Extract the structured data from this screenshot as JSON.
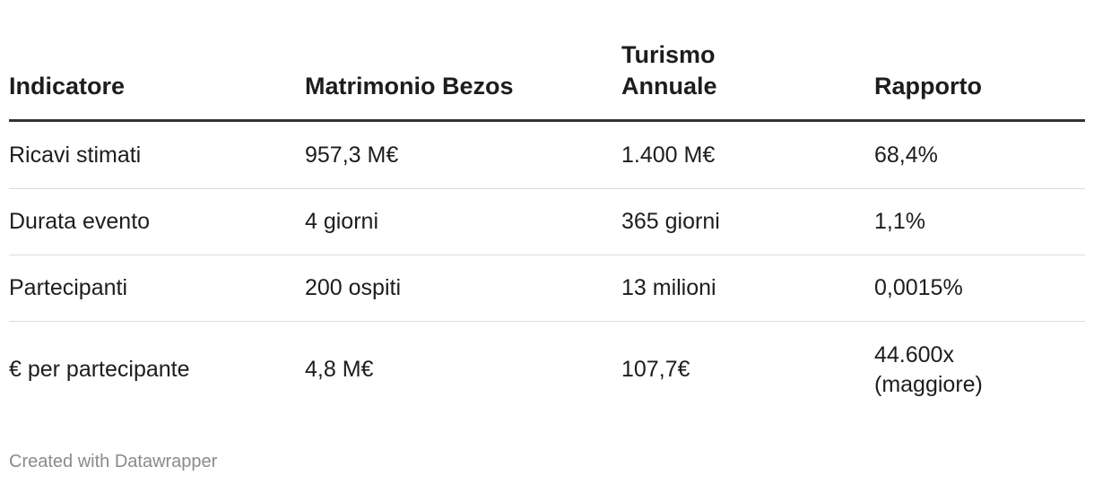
{
  "table": {
    "header": [
      "Indicatore",
      "Matrimonio Bezos",
      "Turismo Annuale",
      "Rapporto"
    ],
    "rows": [
      [
        "Ricavi stimati",
        "957,3 M€",
        "1.400 M€",
        "68,4%"
      ],
      [
        "Durata evento",
        "4 giorni",
        "365 giorni",
        "1,1%"
      ],
      [
        "Partecipanti",
        "200 ospiti",
        "13 milioni",
        "0,0015%"
      ],
      [
        "€ per partecipante",
        "4,8 M€",
        "107,7€",
        "44.600x (maggiore)"
      ]
    ]
  },
  "footer": "Created with Datawrapper"
}
